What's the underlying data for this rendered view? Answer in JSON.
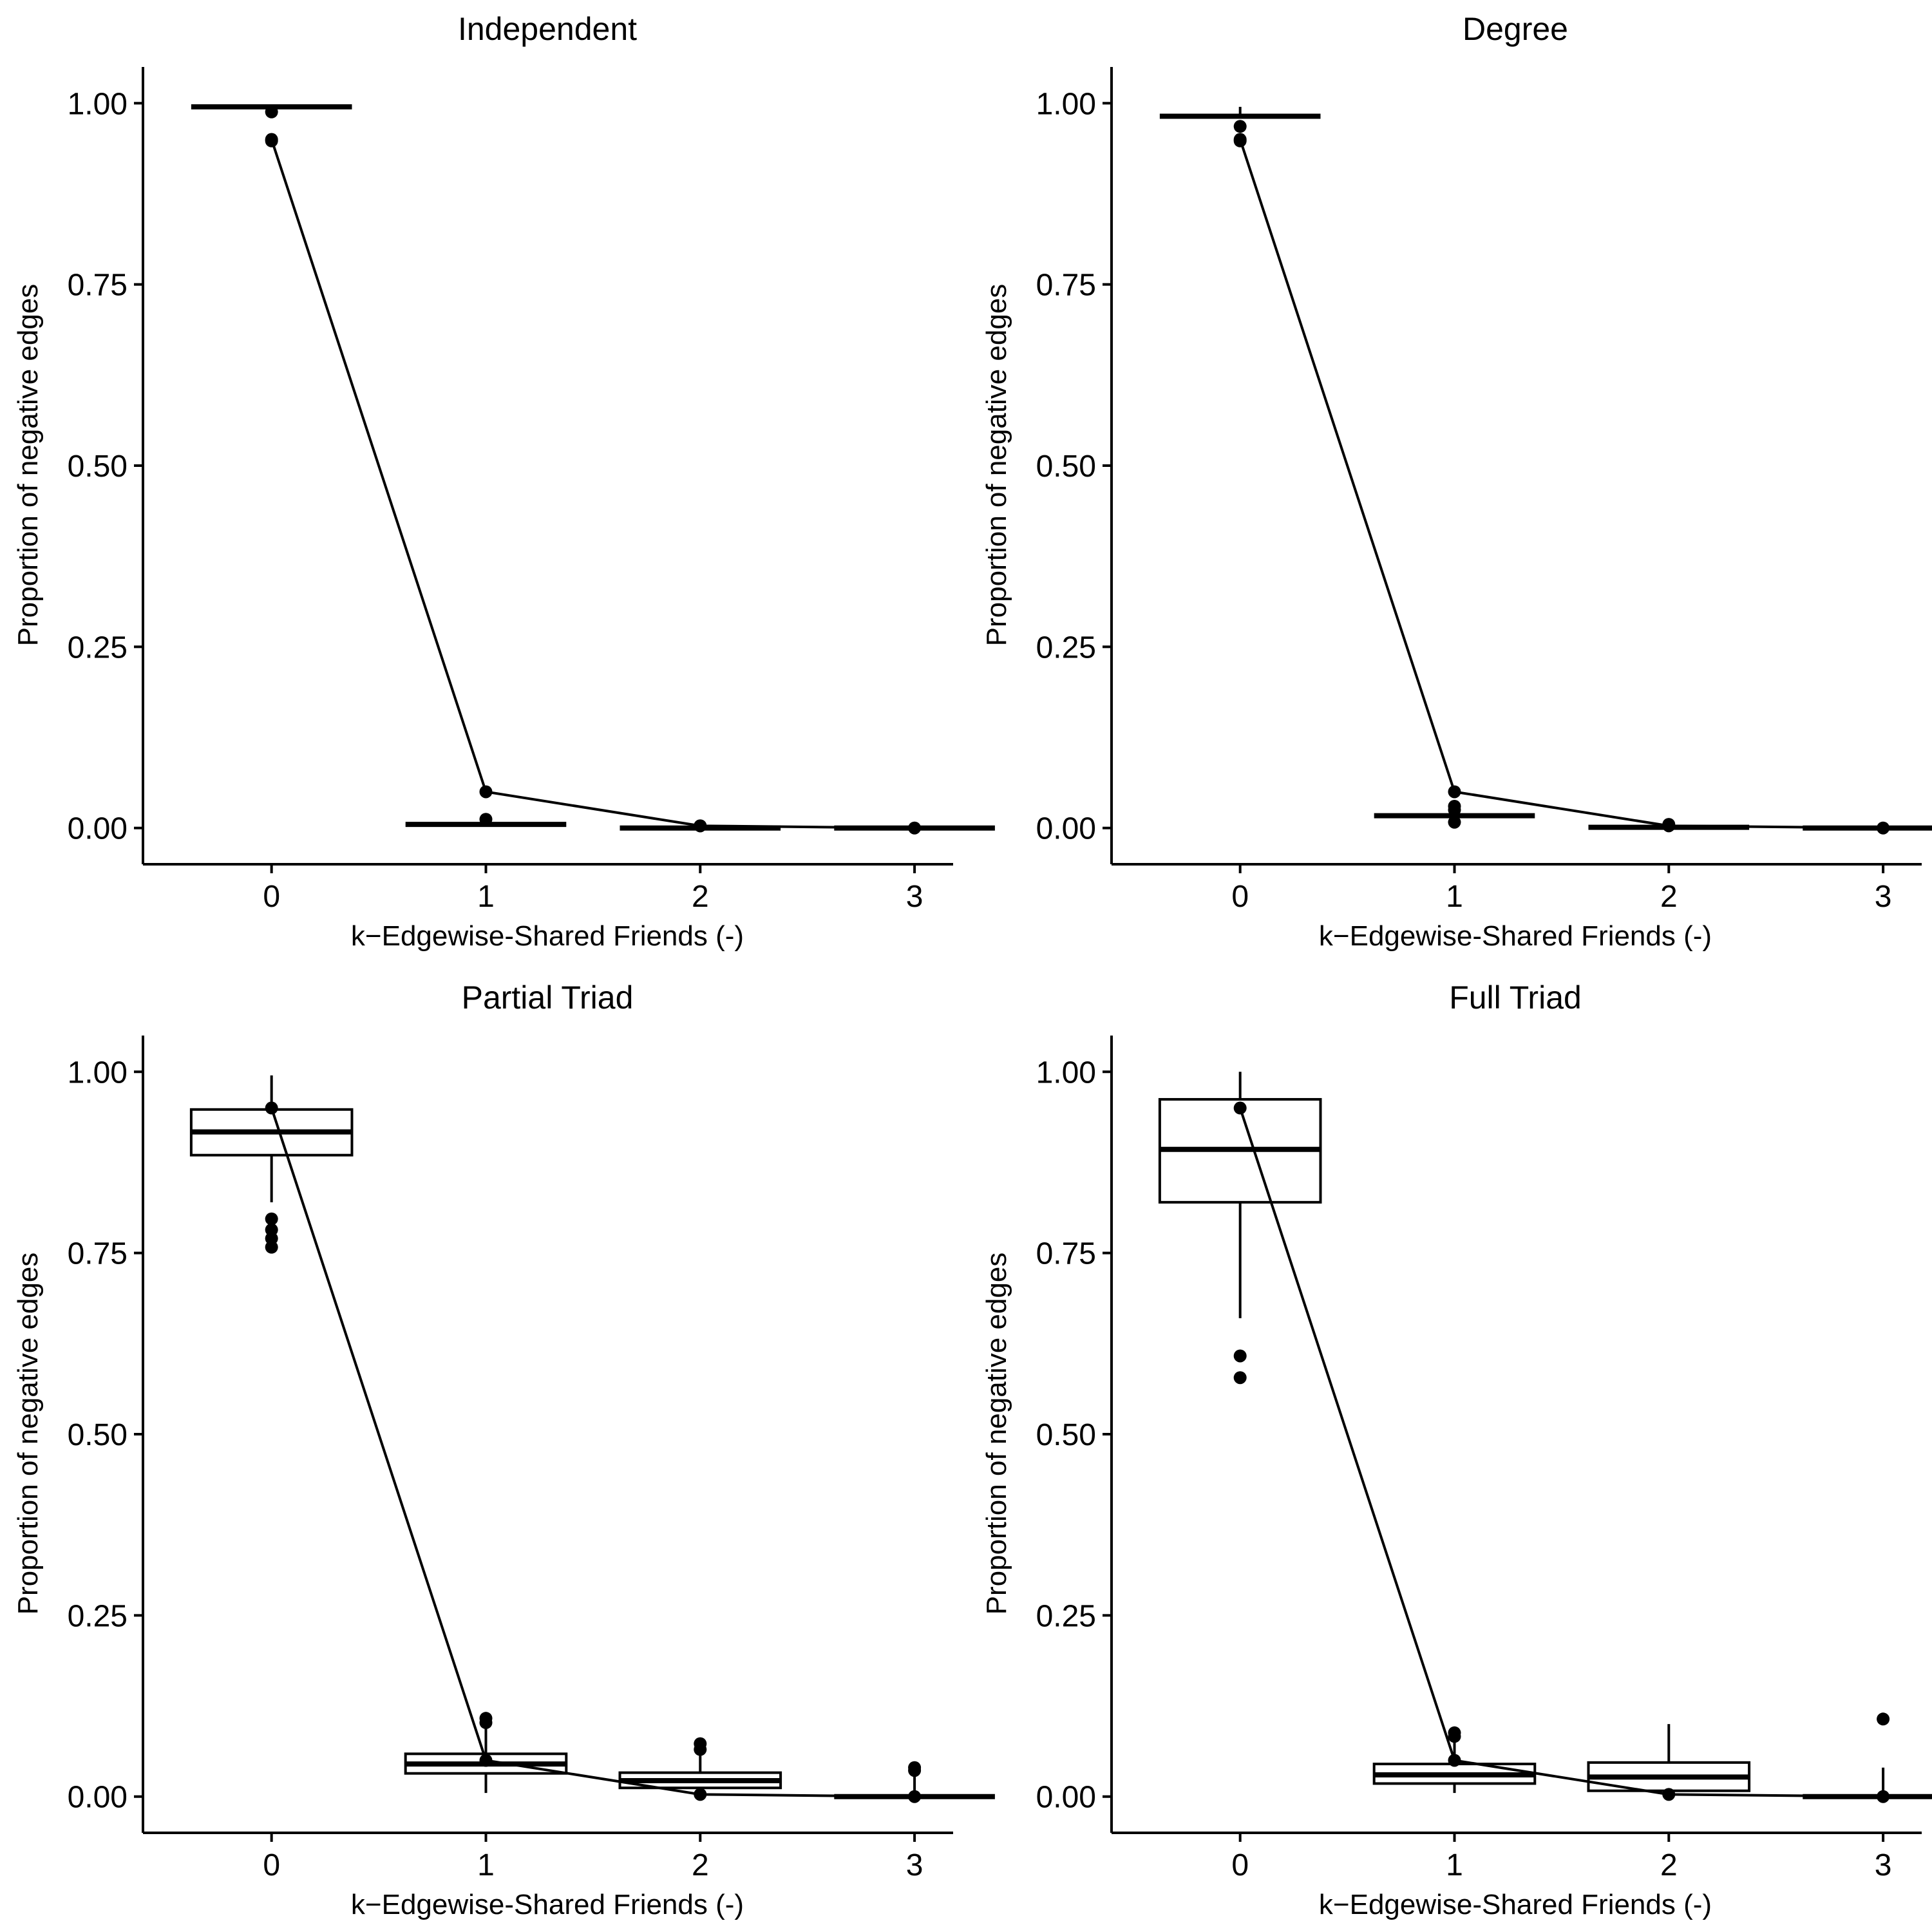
{
  "chart_data": [
    {
      "type": "box",
      "title": "Independent",
      "xlabel": "k−Edgewise-Shared Friends (-)",
      "ylabel": "Proportion of negative edges",
      "ylim": [
        -0.05,
        1.05
      ],
      "yticks": [
        "0.00",
        "0.25",
        "0.50",
        "0.75",
        "1.00"
      ],
      "categories": [
        "0",
        "1",
        "2",
        "3"
      ],
      "boxes": [
        {
          "x": 0,
          "q1": 0.995,
          "median": 0.995,
          "q3": 0.995,
          "whisker_low": 0.995,
          "whisker_high": 0.995,
          "outliers": [
            0.988,
            0.948
          ]
        },
        {
          "x": 1,
          "q1": 0.005,
          "median": 0.005,
          "q3": 0.005,
          "whisker_low": 0.005,
          "whisker_high": 0.005,
          "outliers": [
            0.012
          ]
        },
        {
          "x": 2,
          "q1": 0.0,
          "median": 0.0,
          "q3": 0.0,
          "whisker_low": 0.0,
          "whisker_high": 0.0,
          "outliers": [
            0.003
          ]
        },
        {
          "x": 3,
          "q1": 0.0,
          "median": 0.0,
          "q3": 0.0,
          "whisker_low": 0.0,
          "whisker_high": 0.0,
          "outliers": []
        }
      ],
      "line": [
        0.95,
        0.05,
        0.003,
        0.0
      ]
    },
    {
      "type": "box",
      "title": "Degree",
      "xlabel": "k−Edgewise-Shared Friends (-)",
      "ylabel": "Proportion of negative edges",
      "ylim": [
        -0.05,
        1.05
      ],
      "yticks": [
        "0.00",
        "0.25",
        "0.50",
        "0.75",
        "1.00"
      ],
      "categories": [
        "0",
        "1",
        "2",
        "3"
      ],
      "boxes": [
        {
          "x": 0,
          "q1": 0.982,
          "median": 0.982,
          "q3": 0.982,
          "whisker_low": 0.982,
          "whisker_high": 0.995,
          "outliers": [
            0.968,
            0.948
          ]
        },
        {
          "x": 1,
          "q1": 0.017,
          "median": 0.017,
          "q3": 0.017,
          "whisker_low": 0.017,
          "whisker_high": 0.017,
          "outliers": [
            0.03,
            0.025,
            0.008
          ]
        },
        {
          "x": 2,
          "q1": 0.001,
          "median": 0.001,
          "q3": 0.001,
          "whisker_low": 0.001,
          "whisker_high": 0.001,
          "outliers": [
            0.005
          ]
        },
        {
          "x": 3,
          "q1": 0.0,
          "median": 0.0,
          "q3": 0.0,
          "whisker_low": 0.0,
          "whisker_high": 0.0,
          "outliers": []
        }
      ],
      "line": [
        0.95,
        0.05,
        0.003,
        0.0
      ]
    },
    {
      "type": "box",
      "title": "Partial Triad",
      "xlabel": "k−Edgewise-Shared Friends (-)",
      "ylabel": "Proportion of negative edges",
      "ylim": [
        -0.05,
        1.05
      ],
      "yticks": [
        "0.00",
        "0.25",
        "0.50",
        "0.75",
        "1.00"
      ],
      "categories": [
        "0",
        "1",
        "2",
        "3"
      ],
      "boxes": [
        {
          "x": 0,
          "q1": 0.885,
          "median": 0.917,
          "q3": 0.948,
          "whisker_low": 0.82,
          "whisker_high": 0.995,
          "outliers": [
            0.797,
            0.782,
            0.77,
            0.758
          ]
        },
        {
          "x": 1,
          "q1": 0.032,
          "median": 0.045,
          "q3": 0.059,
          "whisker_low": 0.005,
          "whisker_high": 0.1,
          "outliers": [
            0.108,
            0.102
          ]
        },
        {
          "x": 2,
          "q1": 0.012,
          "median": 0.022,
          "q3": 0.033,
          "whisker_low": 0.0,
          "whisker_high": 0.065,
          "outliers": [
            0.073,
            0.065
          ]
        },
        {
          "x": 3,
          "q1": 0.0,
          "median": 0.0,
          "q3": 0.0,
          "whisker_low": 0.0,
          "whisker_high": 0.03,
          "outliers": [
            0.04,
            0.036
          ]
        }
      ],
      "line": [
        0.95,
        0.05,
        0.003,
        0.0
      ]
    },
    {
      "type": "box",
      "title": "Full Triad",
      "xlabel": "k−Edgewise-Shared Friends (-)",
      "ylabel": "Proportion of negative edges",
      "ylim": [
        -0.05,
        1.05
      ],
      "yticks": [
        "0.00",
        "0.25",
        "0.50",
        "0.75",
        "1.00"
      ],
      "categories": [
        "0",
        "1",
        "2",
        "3"
      ],
      "boxes": [
        {
          "x": 0,
          "q1": 0.82,
          "median": 0.893,
          "q3": 0.962,
          "whisker_low": 0.66,
          "whisker_high": 1.0,
          "outliers": [
            0.608,
            0.578
          ]
        },
        {
          "x": 1,
          "q1": 0.018,
          "median": 0.03,
          "q3": 0.045,
          "whisker_low": 0.005,
          "whisker_high": 0.08,
          "outliers": [
            0.088,
            0.083
          ]
        },
        {
          "x": 2,
          "q1": 0.008,
          "median": 0.027,
          "q3": 0.047,
          "whisker_low": 0.0,
          "whisker_high": 0.1,
          "outliers": []
        },
        {
          "x": 3,
          "q1": 0.0,
          "median": 0.0,
          "q3": 0.0,
          "whisker_low": 0.0,
          "whisker_high": 0.04,
          "outliers": [
            0.107
          ]
        }
      ],
      "line": [
        0.95,
        0.05,
        0.003,
        0.0
      ]
    }
  ]
}
